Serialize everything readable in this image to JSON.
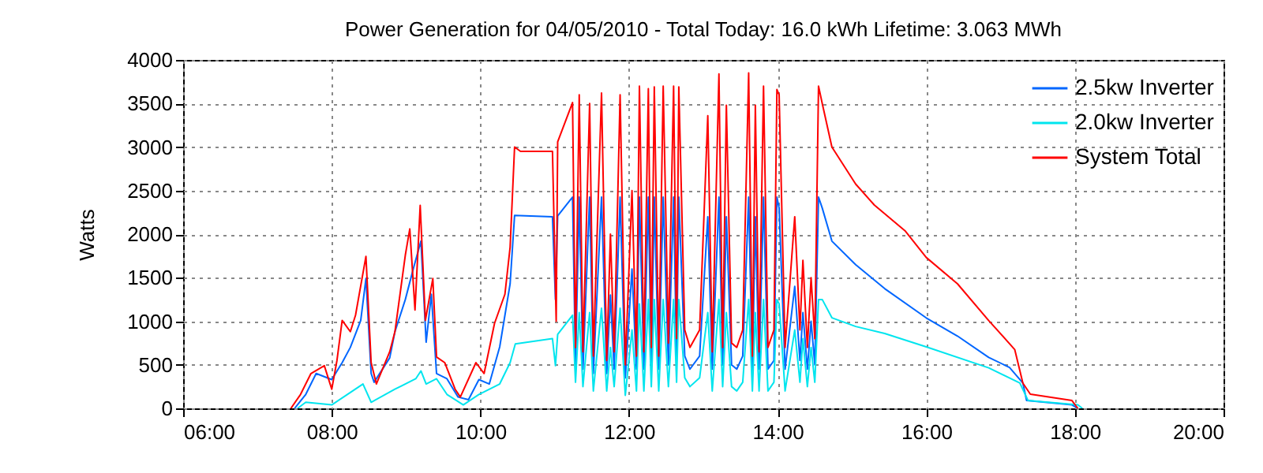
{
  "chart_data": {
    "type": "line",
    "title": "Power Generation for 04/05/2010 - Total Today: 16.0 kWh   Lifetime: 3.063 MWh",
    "ylabel": "Watts",
    "xlim": [
      6,
      20
    ],
    "ylim": [
      0,
      4000
    ],
    "xticks": [
      {
        "value": 6,
        "label": "06:00"
      },
      {
        "value": 8,
        "label": "08:00"
      },
      {
        "value": 10,
        "label": "10:00"
      },
      {
        "value": 12,
        "label": "12:00"
      },
      {
        "value": 14,
        "label": "14:00"
      },
      {
        "value": 16,
        "label": "16:00"
      },
      {
        "value": 18,
        "label": "18:00"
      },
      {
        "value": 20,
        "label": "20:00"
      }
    ],
    "yticks": [
      0,
      500,
      1000,
      1500,
      2000,
      2500,
      3000,
      3500,
      4000
    ],
    "grid": true,
    "legend": "top right",
    "line_style": "solid",
    "series": [
      {
        "name": "2.5kw Inverter",
        "color": "#0066ff",
        "x": [
          7.5,
          7.65,
          7.79,
          8.0,
          8.14,
          8.25,
          8.39,
          8.46,
          8.53,
          8.57,
          8.78,
          8.85,
          8.99,
          9.1,
          9.2,
          9.27,
          9.34,
          9.41,
          9.55,
          9.7,
          9.84,
          9.98,
          10.12,
          10.26,
          10.4,
          10.46,
          10.97,
          11.01,
          11.04,
          11.24,
          11.28,
          11.33,
          11.38,
          11.47,
          11.52,
          11.63,
          11.7,
          11.75,
          11.8,
          11.88,
          11.95,
          12.04,
          12.1,
          12.14,
          12.2,
          12.26,
          12.3,
          12.34,
          12.4,
          12.46,
          12.53,
          12.6,
          12.64,
          12.67,
          12.75,
          12.82,
          12.95,
          13.06,
          13.12,
          13.21,
          13.26,
          13.31,
          13.38,
          13.45,
          13.53,
          13.61,
          13.66,
          13.7,
          13.75,
          13.81,
          13.87,
          13.95,
          13.99,
          14.02,
          14.1,
          14.23,
          14.3,
          14.34,
          14.4,
          14.45,
          14.5,
          14.55,
          14.6,
          14.73,
          15.05,
          15.44,
          16.0,
          16.42,
          16.84,
          17.12,
          17.3,
          17.35,
          17.96,
          18.04
        ],
        "values": [
          0,
          160,
          400,
          330,
          525,
          700,
          1010,
          1490,
          400,
          300,
          580,
          880,
          1250,
          1610,
          1920,
          760,
          1310,
          400,
          340,
          130,
          100,
          330,
          280,
          706,
          1430,
          2215,
          2200,
          1250,
          2210,
          2425,
          500,
          2425,
          450,
          2425,
          400,
          2425,
          400,
          1300,
          450,
          2425,
          350,
          1600,
          450,
          2425,
          450,
          2425,
          500,
          2425,
          450,
          2425,
          500,
          2425,
          550,
          2425,
          600,
          450,
          600,
          2200,
          450,
          2425,
          500,
          2200,
          500,
          450,
          600,
          2425,
          400,
          2200,
          450,
          2425,
          450,
          550,
          2425,
          2300,
          450,
          1400,
          550,
          1100,
          450,
          1000,
          500,
          2425,
          2300,
          1920,
          1650,
          1375,
          1038,
          830,
          585,
          470,
          290,
          90,
          40,
          0
        ]
      },
      {
        "name": "2.0kw Inverter",
        "color": "#00e5ee",
        "x": [
          7.54,
          7.65,
          8.0,
          8.21,
          8.42,
          8.53,
          8.85,
          9.13,
          9.2,
          9.27,
          9.41,
          9.55,
          9.77,
          9.98,
          10.26,
          10.4,
          10.47,
          10.97,
          11.01,
          11.04,
          11.24,
          11.28,
          11.33,
          11.38,
          11.47,
          11.52,
          11.63,
          11.7,
          11.75,
          11.8,
          11.88,
          11.95,
          12.04,
          12.1,
          12.14,
          12.2,
          12.26,
          12.3,
          12.34,
          12.4,
          12.46,
          12.53,
          12.6,
          12.64,
          12.67,
          12.75,
          12.82,
          12.95,
          13.06,
          13.12,
          13.21,
          13.26,
          13.31,
          13.38,
          13.45,
          13.53,
          13.61,
          13.66,
          13.7,
          13.75,
          13.81,
          13.87,
          13.95,
          13.99,
          14.02,
          14.1,
          14.23,
          14.3,
          14.34,
          14.4,
          14.45,
          14.5,
          14.55,
          14.6,
          14.73,
          15.05,
          15.44,
          16.0,
          16.84,
          17.26,
          17.37,
          18.04,
          18.1
        ],
        "values": [
          0,
          70,
          40,
          160,
          280,
          70,
          220,
          340,
          430,
          280,
          340,
          160,
          40,
          160,
          280,
          525,
          740,
          800,
          490,
          850,
          1070,
          300,
          1100,
          250,
          1100,
          200,
          1150,
          200,
          700,
          250,
          1150,
          150,
          900,
          200,
          1200,
          200,
          1250,
          250,
          1250,
          200,
          1250,
          250,
          1250,
          300,
          1250,
          350,
          250,
          350,
          1100,
          200,
          1250,
          250,
          1100,
          250,
          200,
          300,
          1250,
          200,
          1100,
          200,
          1250,
          200,
          300,
          1250,
          1200,
          200,
          900,
          300,
          800,
          250,
          700,
          300,
          1250,
          1250,
          1040,
          940,
          860,
          706,
          465,
          290,
          90,
          40,
          0
        ]
      },
      {
        "name": "System Total",
        "color": "#ff0000",
        "x": [
          7.45,
          7.58,
          7.72,
          7.9,
          8.0,
          8.07,
          8.14,
          8.25,
          8.32,
          8.46,
          8.53,
          8.6,
          8.78,
          8.85,
          8.99,
          9.05,
          9.12,
          9.19,
          9.26,
          9.36,
          9.41,
          9.52,
          9.66,
          9.73,
          9.94,
          10.05,
          10.19,
          10.33,
          10.4,
          10.46,
          10.54,
          10.97,
          11.02,
          11.04,
          11.24,
          11.28,
          11.33,
          11.38,
          11.47,
          11.52,
          11.63,
          11.7,
          11.75,
          11.8,
          11.88,
          11.95,
          12.04,
          12.1,
          12.14,
          12.2,
          12.26,
          12.3,
          12.34,
          12.4,
          12.46,
          12.53,
          12.6,
          12.64,
          12.67,
          12.75,
          12.82,
          12.95,
          13.06,
          13.12,
          13.21,
          13.26,
          13.31,
          13.38,
          13.45,
          13.53,
          13.61,
          13.66,
          13.7,
          13.75,
          13.81,
          13.87,
          13.95,
          13.99,
          14.02,
          14.1,
          14.23,
          14.3,
          14.34,
          14.4,
          14.45,
          14.5,
          14.55,
          14.6,
          14.73,
          15.05,
          15.3,
          15.72,
          16.0,
          16.42,
          16.84,
          17.19,
          17.3,
          17.4,
          17.96,
          18.04
        ],
        "values": [
          0,
          160,
          400,
          490,
          220,
          550,
          1010,
          880,
          1070,
          1745,
          525,
          280,
          650,
          880,
          1760,
          2060,
          1130,
          2330,
          1010,
          1490,
          590,
          525,
          220,
          130,
          525,
          400,
          975,
          1310,
          1850,
          3000,
          2950,
          2950,
          1000,
          3060,
          3510,
          700,
          3600,
          650,
          3500,
          600,
          3620,
          550,
          2000,
          650,
          3600,
          500,
          2500,
          600,
          3700,
          650,
          3670,
          700,
          3690,
          600,
          3700,
          750,
          3700,
          800,
          3690,
          900,
          700,
          900,
          3360,
          650,
          3840,
          700,
          3480,
          750,
          700,
          900,
          3850,
          600,
          3480,
          650,
          3700,
          700,
          900,
          3660,
          3600,
          700,
          2200,
          900,
          1700,
          700,
          1500,
          800,
          3700,
          3500,
          3000,
          2575,
          2335,
          2033,
          1732,
          1430,
          1008,
          676,
          290,
          163,
          90,
          0
        ]
      }
    ]
  }
}
